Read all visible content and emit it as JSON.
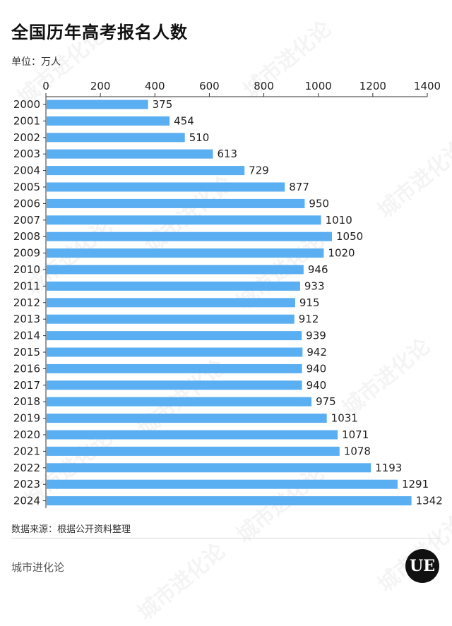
{
  "page": {
    "title": "全国历年高考报名人数",
    "unit": "单位：万人",
    "source": "数据来源：根据公开资料整理",
    "brand": "城市进化论",
    "logo_text": "UE",
    "watermark": "城市进化论"
  },
  "chart_data": {
    "type": "bar",
    "orientation": "horizontal",
    "title": "全国历年高考报名人数",
    "xlabel": "",
    "ylabel": "",
    "xlim": [
      0,
      1400
    ],
    "xticks": [
      0,
      200,
      400,
      600,
      800,
      1000,
      1200,
      1400
    ],
    "x_axis_position": "top",
    "grid": false,
    "bar_color": "#5aaef2",
    "categories": [
      "2000",
      "2001",
      "2002",
      "2003",
      "2004",
      "2005",
      "2006",
      "2007",
      "2008",
      "2009",
      "2010",
      "2011",
      "2012",
      "2013",
      "2014",
      "2015",
      "2016",
      "2017",
      "2018",
      "2019",
      "2020",
      "2021",
      "2022",
      "2023",
      "2024"
    ],
    "values": [
      375,
      454,
      510,
      613,
      729,
      877,
      950,
      1010,
      1050,
      1020,
      946,
      933,
      915,
      912,
      939,
      942,
      940,
      940,
      975,
      1031,
      1071,
      1078,
      1193,
      1291,
      1342
    ]
  }
}
